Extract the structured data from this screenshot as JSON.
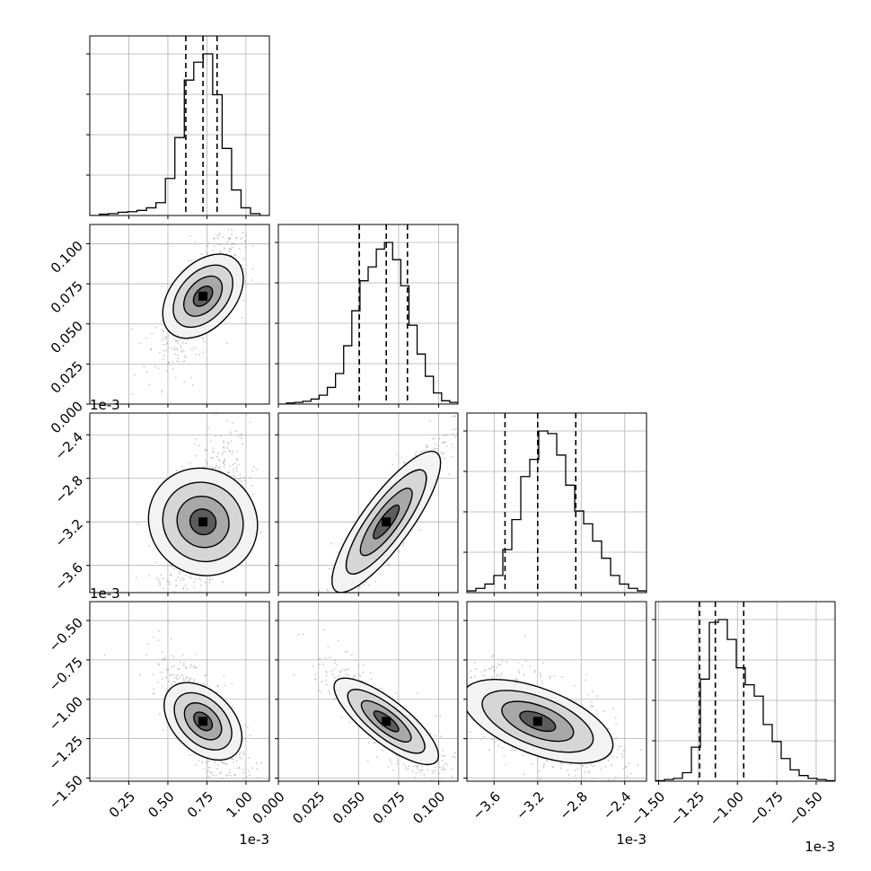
{
  "chart_data": {
    "type": "corner",
    "style": {
      "hist_color": "#000000",
      "point_color": "#9a9a9a",
      "density_color": "#000000",
      "grid_color": "#b0b0b0"
    },
    "parameters": [
      {
        "range": [
          0.0,
          0.00115
        ],
        "ticks": [
          "0.25",
          "0.50",
          "0.75",
          "1.00"
        ],
        "tick_values": [
          0.25,
          0.5,
          0.75,
          1.0
        ],
        "offset_text": "1e-3",
        "quantiles": [
          0.000615,
          0.000725,
          0.000815
        ],
        "hist": [
          0,
          2,
          3,
          5,
          6,
          8,
          12,
          20,
          58,
          122,
          212,
          240,
          253,
          189,
          105,
          40,
          12,
          3,
          0
        ]
      },
      {
        "range": [
          0.0,
          0.112
        ],
        "ticks": [
          "0.000",
          "0.025",
          "0.050",
          "0.075",
          "0.100"
        ],
        "tick_values": [
          0.0,
          0.025,
          0.05,
          0.075,
          0.1
        ],
        "offset_text": "",
        "quantiles": [
          0.0505,
          0.0673,
          0.0805
        ],
        "hist": [
          0,
          2,
          3,
          5,
          9,
          16,
          30,
          55,
          105,
          168,
          222,
          247,
          279,
          291,
          260,
          213,
          142,
          90,
          50,
          20,
          6,
          3
        ]
      },
      {
        "range": [
          -0.00385,
          -0.0022
        ],
        "ticks": [
          "-3.6",
          "-3.2",
          "-2.8",
          "-2.4"
        ],
        "tick_values": [
          -3.6,
          -3.2,
          -2.8,
          -2.4
        ],
        "offset_text": "1e-3",
        "quantiles": [
          -0.0035,
          -0.0032,
          -0.00285
        ],
        "hist": [
          2,
          5,
          10,
          20,
          50,
          85,
          135,
          155,
          188,
          185,
          160,
          125,
          95,
          80,
          60,
          40,
          20,
          10,
          5,
          2
        ]
      },
      {
        "range": [
          -0.00152,
          -0.00038
        ],
        "ticks": [
          "-1.50",
          "-1.25",
          "-1.00",
          "-0.75",
          "-0.50"
        ],
        "tick_values": [
          -1.5,
          -1.25,
          -1.0,
          -0.75,
          -0.5
        ],
        "offset_text": "1e-3",
        "quantiles": [
          -0.00124,
          -0.00114,
          -0.00096
        ],
        "hist": [
          1,
          3,
          5,
          15,
          60,
          180,
          280,
          285,
          250,
          200,
          170,
          150,
          100,
          70,
          40,
          20,
          10,
          5,
          3,
          1
        ]
      }
    ]
  }
}
